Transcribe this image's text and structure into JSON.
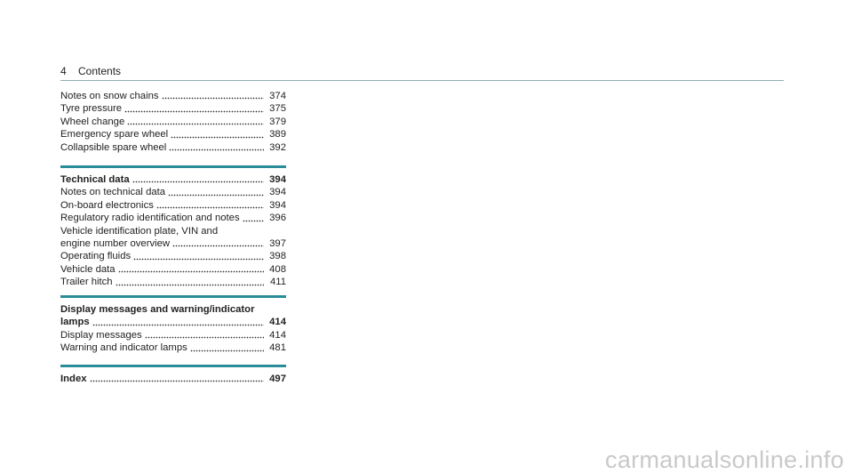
{
  "header": {
    "page": "4",
    "title": "Contents"
  },
  "groups": [
    {
      "entries": [
        {
          "lines": [
            "Notes on snow chains"
          ],
          "page": "374"
        },
        {
          "lines": [
            "Tyre pressure"
          ],
          "page": "375"
        },
        {
          "lines": [
            "Wheel change"
          ],
          "page": "379"
        },
        {
          "lines": [
            "Emergency spare wheel"
          ],
          "page": "389"
        },
        {
          "lines": [
            "Collapsible spare wheel"
          ],
          "page": "392"
        }
      ]
    },
    {
      "heading": {
        "lines": [
          "Technical data"
        ],
        "page": "394"
      },
      "entries": [
        {
          "lines": [
            "Notes on technical data"
          ],
          "page": "394"
        },
        {
          "lines": [
            "On-board electronics"
          ],
          "page": "394"
        },
        {
          "lines": [
            "Regulatory radio identification and notes"
          ],
          "page": "396"
        },
        {
          "lines": [
            "Vehicle identification plate, VIN and",
            "engine number overview"
          ],
          "page": "397"
        },
        {
          "lines": [
            "Operating fluids"
          ],
          "page": "398"
        },
        {
          "lines": [
            "Vehicle data"
          ],
          "page": "408"
        },
        {
          "lines": [
            "Trailer hitch"
          ],
          "page": "411"
        }
      ]
    },
    {
      "heading": {
        "lines": [
          "Display messages and warning/indicator",
          "lamps"
        ],
        "page": "414"
      },
      "entries": [
        {
          "lines": [
            "Display messages"
          ],
          "page": "414"
        },
        {
          "lines": [
            "Warning and indicator lamps"
          ],
          "page": "481"
        }
      ]
    },
    {
      "heading": {
        "lines": [
          "Index"
        ],
        "page": "497"
      },
      "entries": []
    }
  ],
  "watermark": "carmanualsonline.info"
}
